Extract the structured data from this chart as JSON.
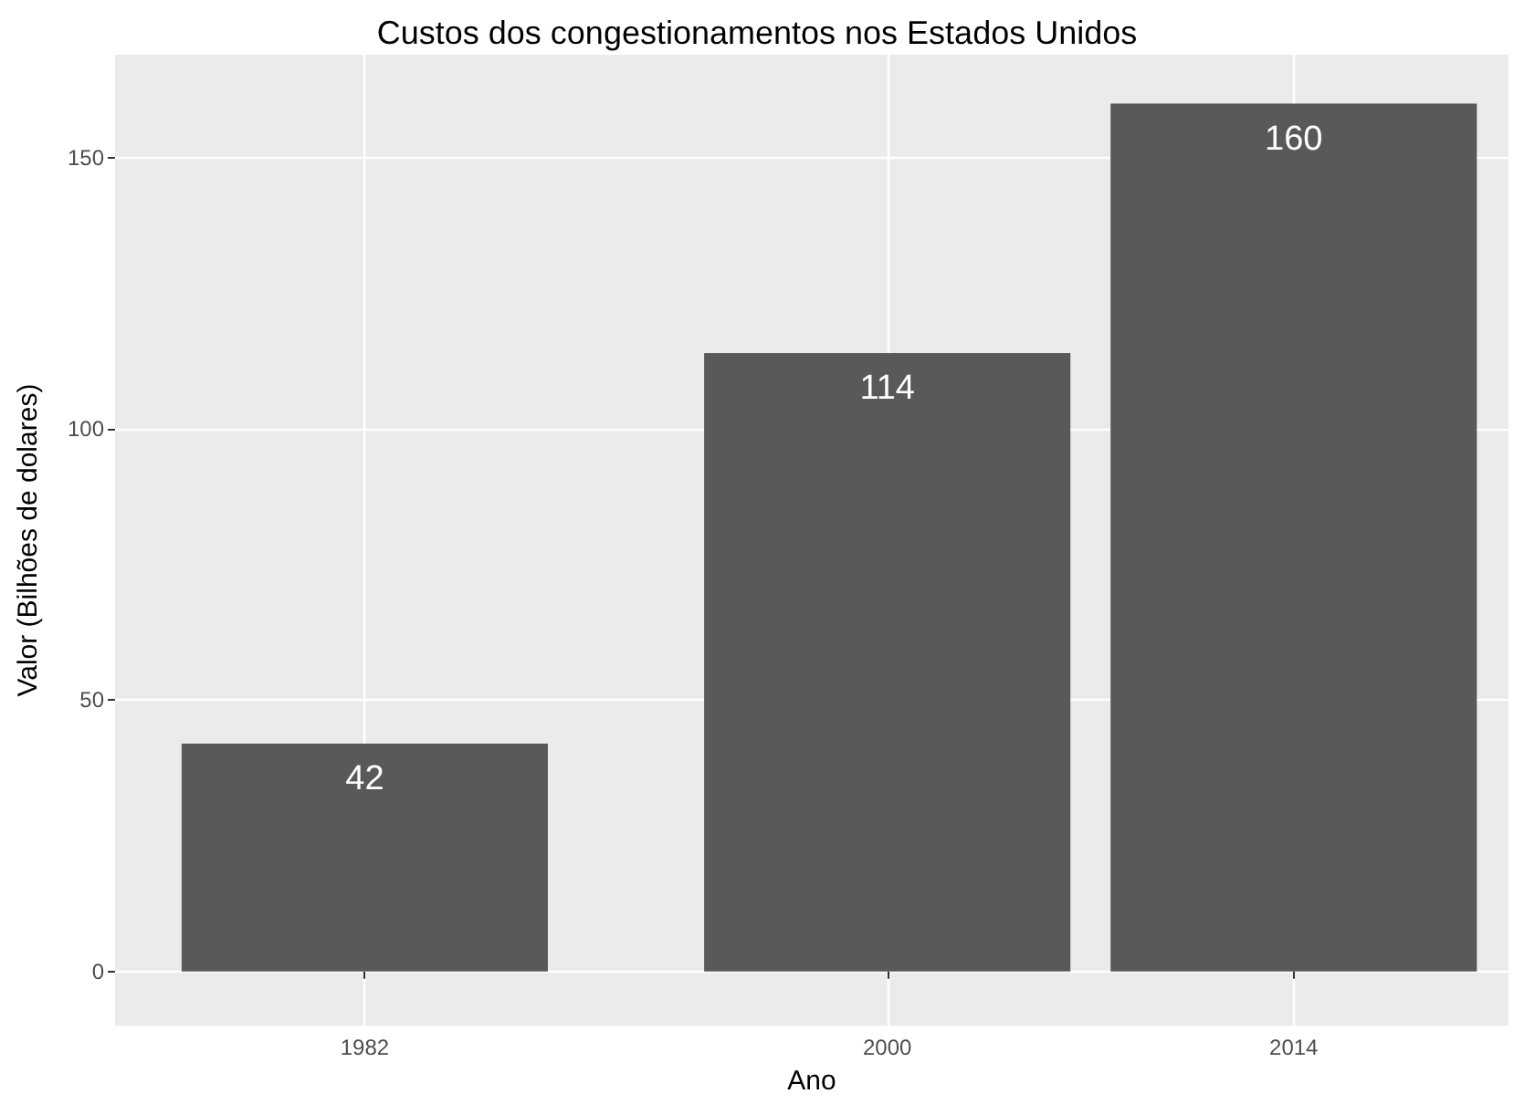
{
  "chart_data": {
    "type": "bar",
    "title": "Custos dos congestionamentos nos Estados Unidos",
    "xlabel": "Ano",
    "ylabel": "Valor (Bilhões de dolares)",
    "x": [
      1982,
      2000,
      2014
    ],
    "values": [
      42,
      114,
      160
    ],
    "color": "#595959",
    "data_labels": true,
    "xlim": [
      1973.4,
      2021.4
    ],
    "xticks": [
      1982,
      2000,
      2014
    ],
    "ylim": [
      -10,
      169
    ],
    "yticks": [
      0,
      50,
      100,
      150
    ],
    "grid": true
  }
}
